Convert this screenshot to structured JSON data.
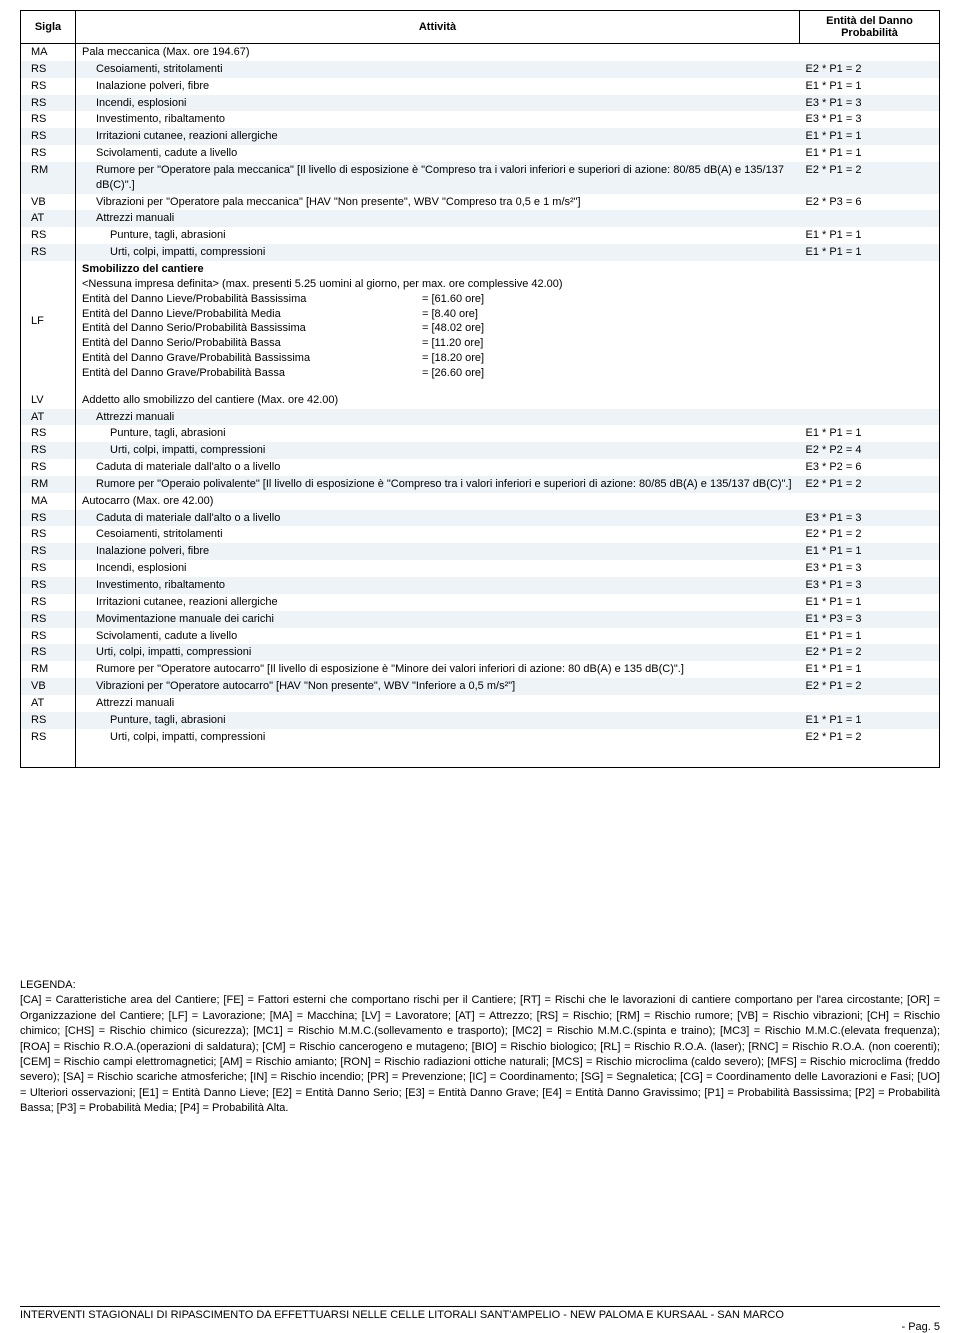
{
  "header": {
    "sigla": "Sigla",
    "attivita": "Attività",
    "entita": "Entità del Danno",
    "prob": "Probabilità"
  },
  "rows": [
    {
      "s": "MA",
      "a": "Pala meccanica  (Max. ore 194.67)",
      "e": "",
      "i": 0,
      "st": 0
    },
    {
      "s": "RS",
      "a": "Cesoiamenti, stritolamenti",
      "e": "E2 * P1 = 2",
      "i": 1,
      "st": 1
    },
    {
      "s": "RS",
      "a": "Inalazione polveri, fibre",
      "e": "E1 * P1 = 1",
      "i": 1,
      "st": 0
    },
    {
      "s": "RS",
      "a": "Incendi, esplosioni",
      "e": "E3 * P1 = 3",
      "i": 1,
      "st": 1
    },
    {
      "s": "RS",
      "a": "Investimento, ribaltamento",
      "e": "E3 * P1 = 3",
      "i": 1,
      "st": 0
    },
    {
      "s": "RS",
      "a": "Irritazioni cutanee, reazioni allergiche",
      "e": "E1 * P1 = 1",
      "i": 1,
      "st": 1
    },
    {
      "s": "RS",
      "a": "Scivolamenti, cadute a livello",
      "e": "E1 * P1 = 1",
      "i": 1,
      "st": 0
    },
    {
      "s": "RM",
      "a": "Rumore per \"Operatore pala meccanica\" [Il livello di esposizione è \"Compreso tra i valori inferiori e superiori di azione: 80/85 dB(A) e 135/137 dB(C)\".]",
      "e": "E2 * P1 = 2",
      "i": 1,
      "st": 1
    },
    {
      "s": "VB",
      "a": "Vibrazioni per \"Operatore pala meccanica\" [HAV \"Non presente\", WBV \"Compreso tra 0,5 e 1 m/s²\"]",
      "e": "E2 * P3 = 6",
      "i": 1,
      "st": 0
    },
    {
      "s": "AT",
      "a": "Attrezzi manuali",
      "e": "",
      "i": 1,
      "st": 1
    },
    {
      "s": "RS",
      "a": "Punture, tagli, abrasioni",
      "e": "E1 * P1 = 1",
      "i": 2,
      "st": 0
    },
    {
      "s": "RS",
      "a": "Urti, colpi, impatti, compressioni",
      "e": "E1 * P1 = 1",
      "i": 2,
      "st": 1
    }
  ],
  "lf": {
    "sigla": "LF",
    "title": "Smobilizzo del cantiere",
    "sub": "<Nessuna impresa definita>  (max. presenti 5.25 uomini al giorno, per max. ore complessive 42.00)",
    "lines": [
      {
        "l": "Entità del Danno Lieve/Probabilità Bassissima",
        "v": "= [61.60 ore]"
      },
      {
        "l": "Entità del Danno Lieve/Probabilità Media",
        "v": "= [8.40 ore]"
      },
      {
        "l": "Entità del Danno Serio/Probabilità Bassissima",
        "v": "= [48.02 ore]"
      },
      {
        "l": "Entità del Danno Serio/Probabilità Bassa",
        "v": "= [11.20 ore]"
      },
      {
        "l": "Entità del Danno Grave/Probabilità Bassissima",
        "v": "= [18.20 ore]"
      },
      {
        "l": "Entità del Danno Grave/Probabilità Bassa",
        "v": "= [26.60 ore]"
      }
    ]
  },
  "rows2": [
    {
      "s": "LV",
      "a": "Addetto allo smobilizzo del cantiere  (Max. ore 42.00)",
      "e": "",
      "i": 0,
      "st": 0
    },
    {
      "s": "AT",
      "a": "Attrezzi manuali",
      "e": "",
      "i": 1,
      "st": 1
    },
    {
      "s": "RS",
      "a": "Punture, tagli, abrasioni",
      "e": "E1 * P1 = 1",
      "i": 2,
      "st": 0
    },
    {
      "s": "RS",
      "a": "Urti, colpi, impatti, compressioni",
      "e": "E2 * P2 = 4",
      "i": 2,
      "st": 1
    },
    {
      "s": "RS",
      "a": "Caduta di materiale dall'alto o a livello",
      "e": "E3 * P2 = 6",
      "i": 1,
      "st": 0
    },
    {
      "s": "RM",
      "a": "Rumore per \"Operaio polivalente\" [Il livello di esposizione è \"Compreso tra i valori inferiori e superiori di azione: 80/85 dB(A) e 135/137 dB(C)\".]",
      "e": "E2 * P1 = 2",
      "i": 1,
      "st": 1
    },
    {
      "s": "MA",
      "a": "Autocarro  (Max. ore 42.00)",
      "e": "",
      "i": 0,
      "st": 0
    },
    {
      "s": "RS",
      "a": "Caduta di materiale dall'alto o a livello",
      "e": "E3 * P1 = 3",
      "i": 1,
      "st": 1
    },
    {
      "s": "RS",
      "a": "Cesoiamenti, stritolamenti",
      "e": "E2 * P1 = 2",
      "i": 1,
      "st": 0
    },
    {
      "s": "RS",
      "a": "Inalazione polveri, fibre",
      "e": "E1 * P1 = 1",
      "i": 1,
      "st": 1
    },
    {
      "s": "RS",
      "a": "Incendi, esplosioni",
      "e": "E3 * P1 = 3",
      "i": 1,
      "st": 0
    },
    {
      "s": "RS",
      "a": "Investimento, ribaltamento",
      "e": "E3 * P1 = 3",
      "i": 1,
      "st": 1
    },
    {
      "s": "RS",
      "a": "Irritazioni cutanee, reazioni allergiche",
      "e": "E1 * P1 = 1",
      "i": 1,
      "st": 0
    },
    {
      "s": "RS",
      "a": "Movimentazione manuale dei carichi",
      "e": "E1 * P3 = 3",
      "i": 1,
      "st": 1
    },
    {
      "s": "RS",
      "a": "Scivolamenti, cadute a livello",
      "e": "E1 * P1 = 1",
      "i": 1,
      "st": 0
    },
    {
      "s": "RS",
      "a": "Urti, colpi, impatti, compressioni",
      "e": "E2 * P1 = 2",
      "i": 1,
      "st": 1
    },
    {
      "s": "RM",
      "a": "Rumore per \"Operatore autocarro\" [Il livello di esposizione è \"Minore dei valori inferiori di azione: 80 dB(A) e 135 dB(C)\".]",
      "e": "E1 * P1 = 1",
      "i": 1,
      "st": 0
    },
    {
      "s": "VB",
      "a": "Vibrazioni per \"Operatore autocarro\" [HAV \"Non presente\", WBV \"Inferiore a 0,5 m/s²\"]",
      "e": "E2 * P1 = 2",
      "i": 1,
      "st": 1
    },
    {
      "s": "AT",
      "a": "Attrezzi manuali",
      "e": "",
      "i": 1,
      "st": 0
    },
    {
      "s": "RS",
      "a": "Punture, tagli, abrasioni",
      "e": "E1 * P1 = 1",
      "i": 2,
      "st": 1
    },
    {
      "s": "RS",
      "a": "Urti, colpi, impatti, compressioni",
      "e": "E2 * P1 = 2",
      "i": 2,
      "st": 0
    }
  ],
  "legend": {
    "title": "LEGENDA:",
    "body": "[CA] = Caratteristiche area del Cantiere; [FE] = Fattori esterni che comportano rischi per il Cantiere; [RT] = Rischi che le lavorazioni di cantiere comportano per l'area circostante; [OR] = Organizzazione del Cantiere; [LF] = Lavorazione; [MA] = Macchina; [LV] = Lavoratore; [AT] = Attrezzo; [RS] = Rischio; [RM] = Rischio rumore; [VB] = Rischio vibrazioni; [CH] = Rischio chimico; [CHS] = Rischio chimico (sicurezza); [MC1] = Rischio M.M.C.(sollevamento e trasporto); [MC2] = Rischio M.M.C.(spinta e traino); [MC3] = Rischio M.M.C.(elevata frequenza); [ROA] = Rischio R.O.A.(operazioni di saldatura); [CM] = Rischio cancerogeno e mutageno; [BIO] = Rischio biologico; [RL] = Rischio R.O.A. (laser); [RNC] = Rischio R.O.A. (non coerenti); [CEM] = Rischio campi elettromagnetici; [AM] = Rischio amianto; [RON] = Rischio radiazioni ottiche naturali; [MCS] = Rischio microclima (caldo severo); [MFS] = Rischio microclima (freddo severo); [SA] = Rischio scariche atmosferiche; [IN] = Rischio incendio; [PR] = Prevenzione; [IC] = Coordinamento; [SG] = Segnaletica; [CG] = Coordinamento delle Lavorazioni e Fasi; [UO] = Ulteriori osservazioni; [E1] = Entità Danno Lieve; [E2] = Entità Danno Serio; [E3] = Entità Danno Grave; [E4] = Entità Danno Gravissimo; [P1] = Probabilità Bassissima; [P2] = Probabilità Bassa; [P3] = Probabilità Media; [P4] = Probabilità Alta."
  },
  "footer": {
    "line1": "INTERVENTI STAGIONALI DI RIPASCIMENTO DA EFFETTUARSI NELLE CELLE LITORALI SANT'AMPELIO - NEW PALOMA E KURSAAL - SAN MARCO",
    "line2": "- Pag.  5"
  },
  "style": {
    "stripe_color": "#eef3f8",
    "border_color": "#000000",
    "font_size_pt": 8.5
  }
}
